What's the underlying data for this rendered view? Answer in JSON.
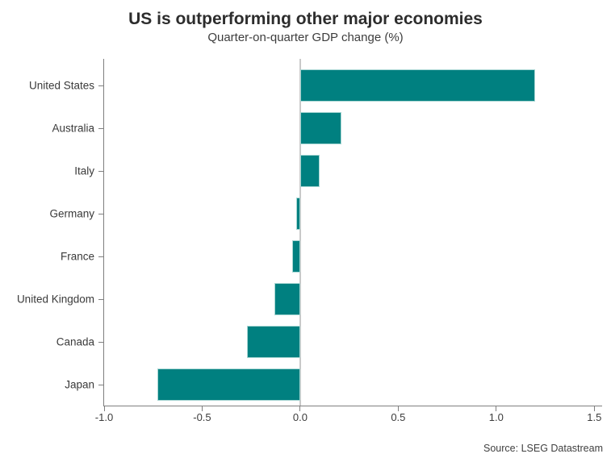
{
  "header": {
    "title": "US is outperforming other major economies",
    "subtitle": "Quarter-on-quarter GDP change (%)"
  },
  "source": "Source: LSEG Datastream",
  "chart_data": {
    "type": "bar",
    "orientation": "horizontal",
    "title": "US is outperforming other major economies",
    "subtitle": "Quarter-on-quarter GDP change (%)",
    "categories": [
      "United States",
      "Australia",
      "Italy",
      "Germany",
      "France",
      "United Kingdom",
      "Canada",
      "Japan"
    ],
    "values": [
      1.2,
      0.21,
      0.1,
      -0.02,
      -0.04,
      -0.13,
      -0.27,
      -0.73
    ],
    "xlim": [
      -1.0,
      1.54
    ],
    "xticks": [
      -1.0,
      -0.5,
      0.0,
      0.5,
      1.0,
      1.5
    ],
    "xtick_labels": [
      "-1.0",
      "-0.5",
      "0.0",
      "0.5",
      "1.0",
      "1.5"
    ],
    "xlabel": "",
    "ylabel": "",
    "grid": false,
    "zero_line": true,
    "legend": "none",
    "bar_color": "#008080",
    "bar_edge_color": "#a8d6d3",
    "axis_color": "#7f7f7f",
    "zero_line_color": "#c9c9c9",
    "text_color": "#3a3a3a",
    "source": "Source: LSEG Datastream"
  }
}
